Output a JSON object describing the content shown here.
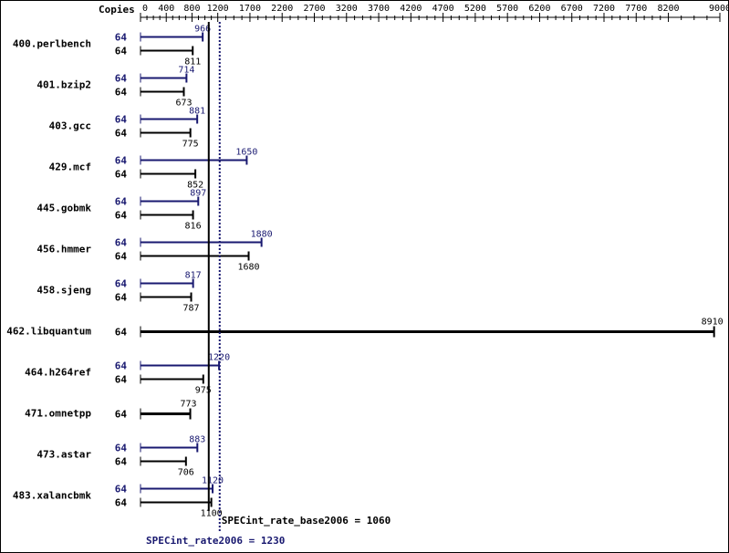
{
  "chart_data": {
    "type": "bar",
    "orientation": "horizontal",
    "copies_label": "Copies",
    "x_ticks": [
      0,
      400,
      800,
      1200,
      1700,
      2200,
      2700,
      3200,
      3700,
      4200,
      4700,
      5200,
      5700,
      6200,
      6700,
      7200,
      7700,
      8200,
      9000
    ],
    "xlim": [
      0,
      9000
    ],
    "grid": false,
    "benchmarks": [
      {
        "name": "400.perlbench",
        "peak": {
          "copies": "64",
          "value": 966
        },
        "base": {
          "copies": "64",
          "value": 811
        }
      },
      {
        "name": "401.bzip2",
        "peak": {
          "copies": "64",
          "value": 714
        },
        "base": {
          "copies": "64",
          "value": 673
        }
      },
      {
        "name": "403.gcc",
        "peak": {
          "copies": "64",
          "value": 881
        },
        "base": {
          "copies": "64",
          "value": 775
        }
      },
      {
        "name": "429.mcf",
        "peak": {
          "copies": "64",
          "value": 1650
        },
        "base": {
          "copies": "64",
          "value": 852
        }
      },
      {
        "name": "445.gobmk",
        "peak": {
          "copies": "64",
          "value": 897
        },
        "base": {
          "copies": "64",
          "value": 816
        }
      },
      {
        "name": "456.hmmer",
        "peak": {
          "copies": "64",
          "value": 1880
        },
        "base": {
          "copies": "64",
          "value": 1680
        }
      },
      {
        "name": "458.sjeng",
        "peak": {
          "copies": "64",
          "value": 817
        },
        "base": {
          "copies": "64",
          "value": 787
        }
      },
      {
        "name": "462.libquantum",
        "single": {
          "copies": "64",
          "value": 8910
        }
      },
      {
        "name": "464.h264ref",
        "peak": {
          "copies": "64",
          "value": 1220
        },
        "base": {
          "copies": "64",
          "value": 975
        }
      },
      {
        "name": "471.omnetpp",
        "single": {
          "copies": "64",
          "value": 773
        }
      },
      {
        "name": "473.astar",
        "peak": {
          "copies": "64",
          "value": 883
        },
        "base": {
          "copies": "64",
          "value": 706
        }
      },
      {
        "name": "483.xalancbmk",
        "peak": {
          "copies": "64",
          "value": 1120
        },
        "base": {
          "copies": "64",
          "value": 1100
        }
      }
    ],
    "summary_base": {
      "label": "SPECint_rate_base2006 = 1060",
      "value": 1060
    },
    "summary_peak": {
      "label": "SPECint_rate2006 = 1230",
      "value": 1230
    },
    "colors": {
      "base": "#000000",
      "peak": "#191970",
      "border": "#000000"
    }
  }
}
